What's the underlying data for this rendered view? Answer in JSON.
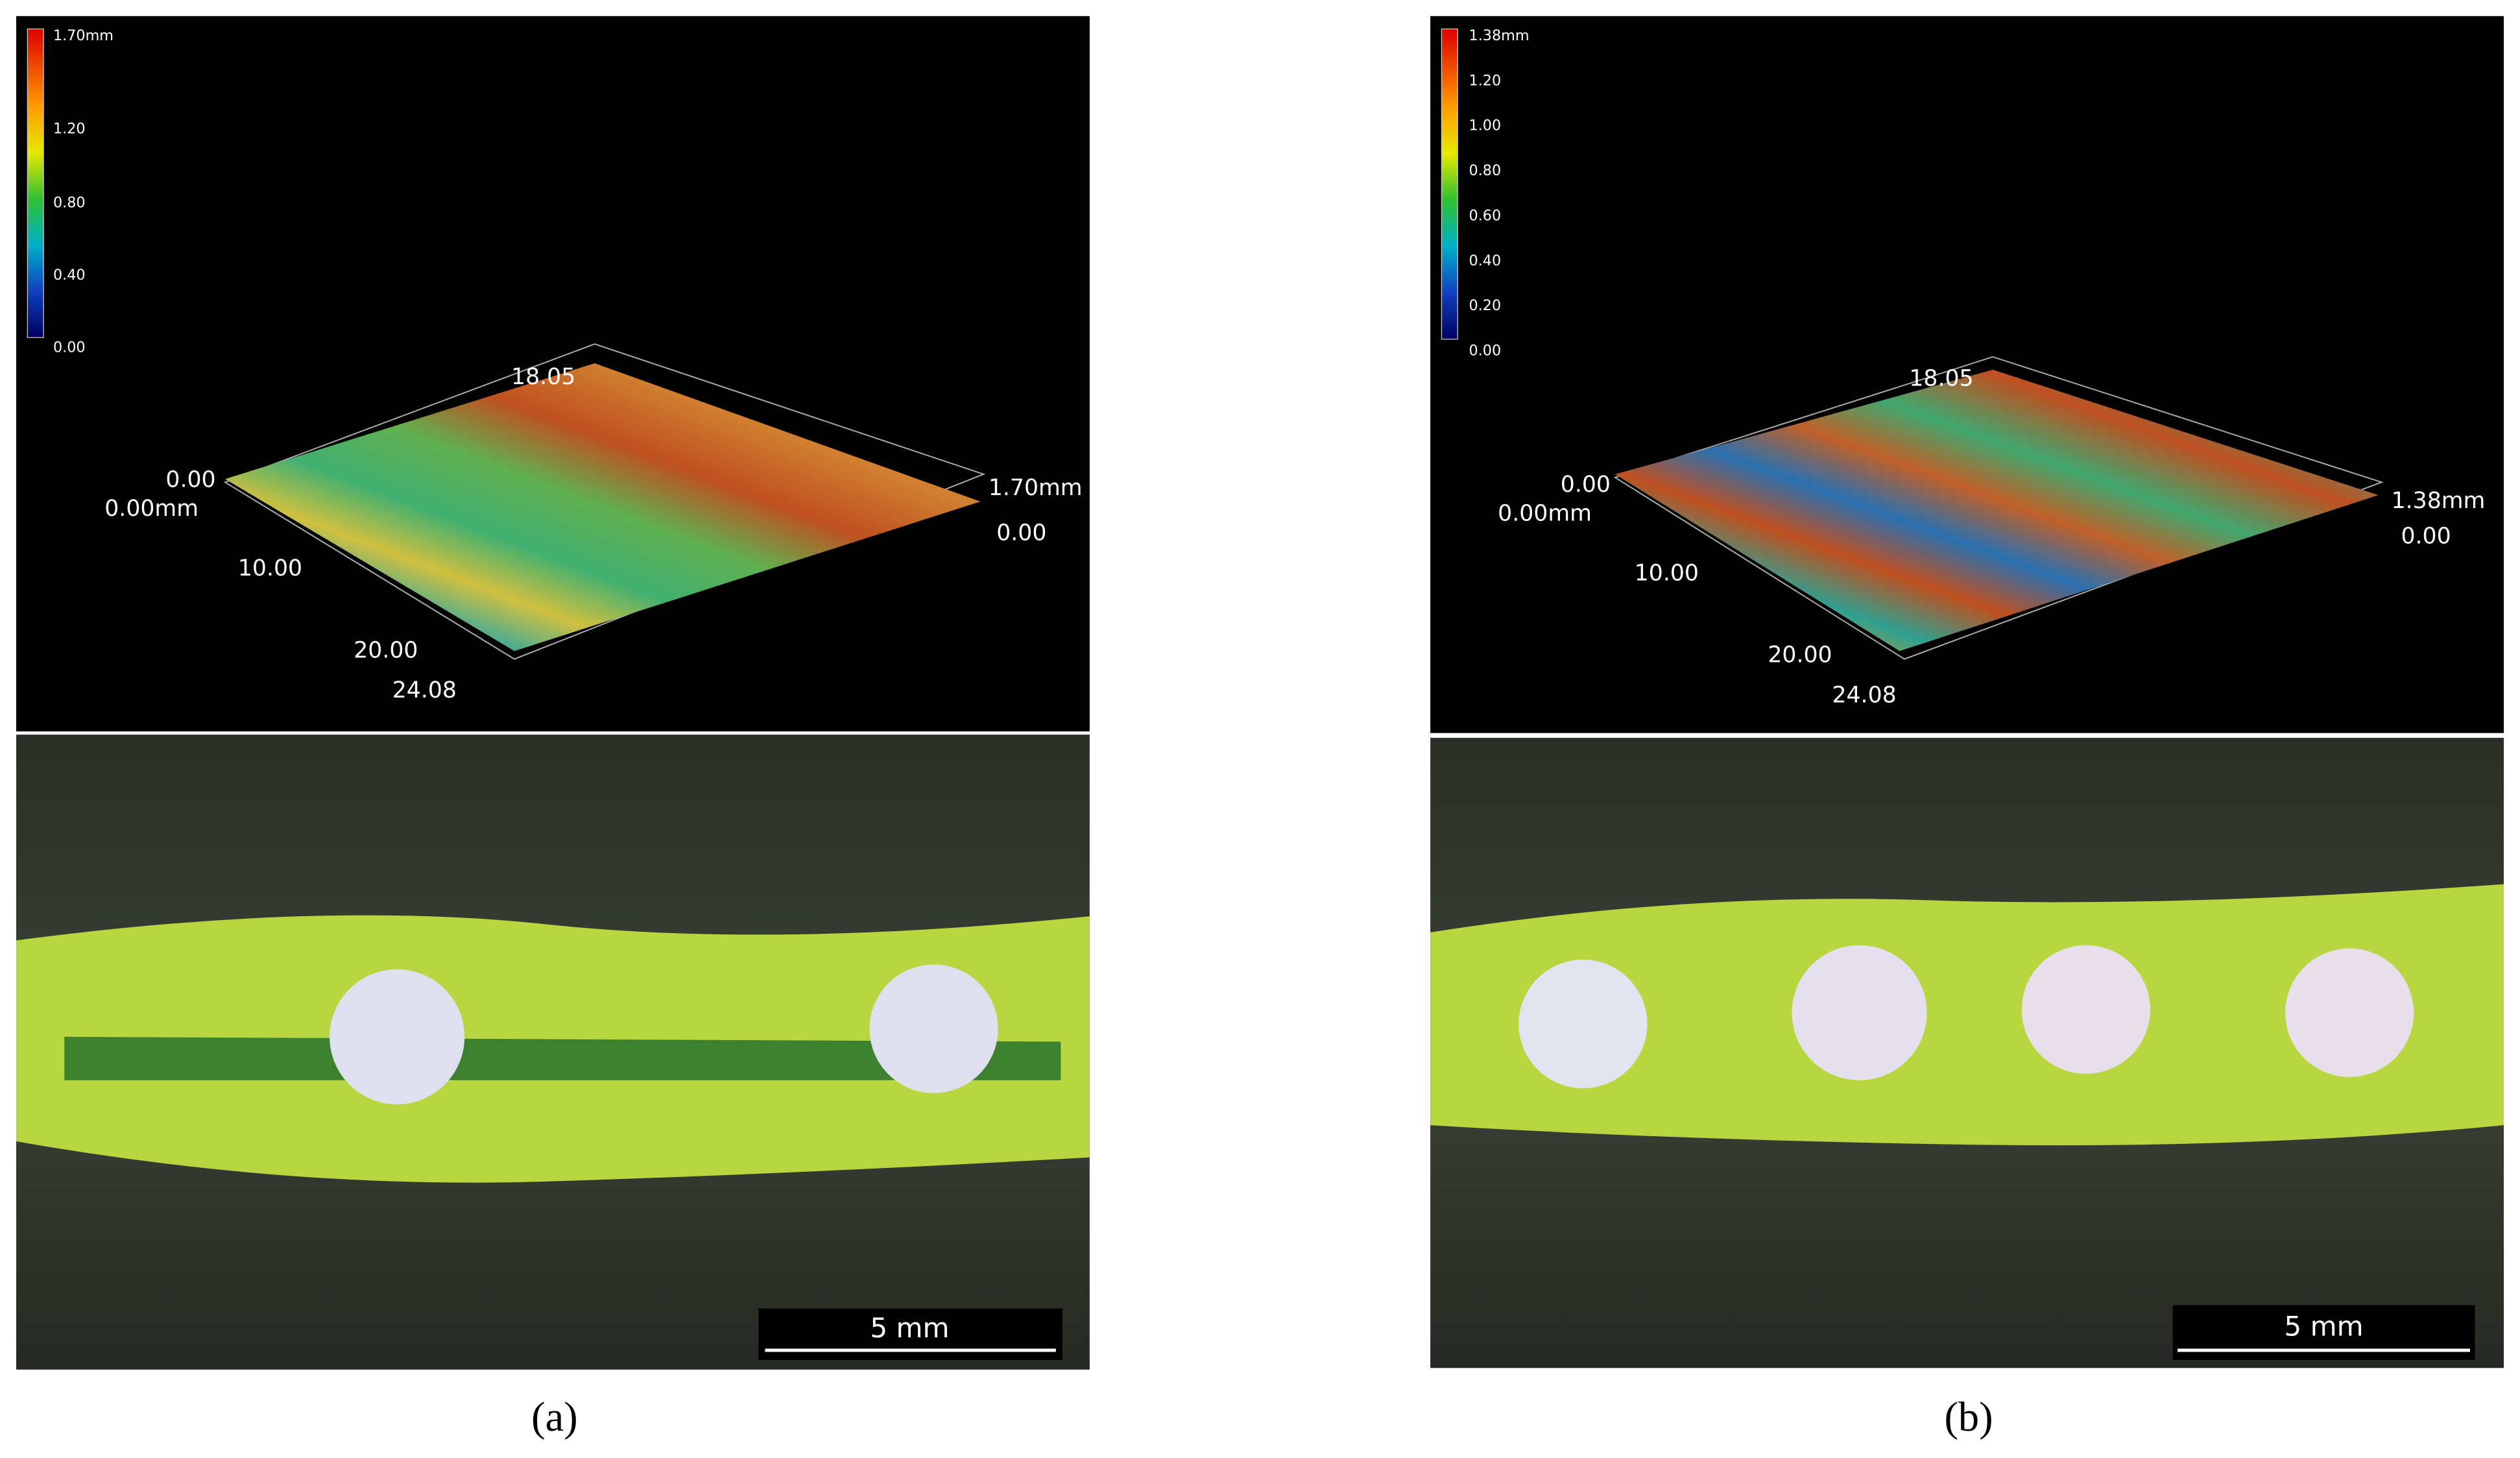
{
  "panels": [
    {
      "label": "(a)",
      "colorbar_ticks": [
        "1.70mm",
        "1.20",
        "0.80",
        "0.40",
        "0.00"
      ],
      "axis_labels": [
        "18.05",
        "0.00",
        "0.00mm",
        "10.00",
        "20.00",
        "24.08",
        "1.70mm",
        "0.00"
      ],
      "scale_bar": "5 mm"
    },
    {
      "label": "(b)",
      "colorbar_ticks": [
        "1.38mm",
        "1.20",
        "1.00",
        "0.80",
        "0.60",
        "0.40",
        "0.20",
        "0.00"
      ],
      "axis_labels": [
        "18.05",
        "0.00",
        "0.00mm",
        "10.00",
        "20.00",
        "24.08",
        "1.38mm",
        "0.00"
      ],
      "scale_bar": "5 mm"
    }
  ]
}
